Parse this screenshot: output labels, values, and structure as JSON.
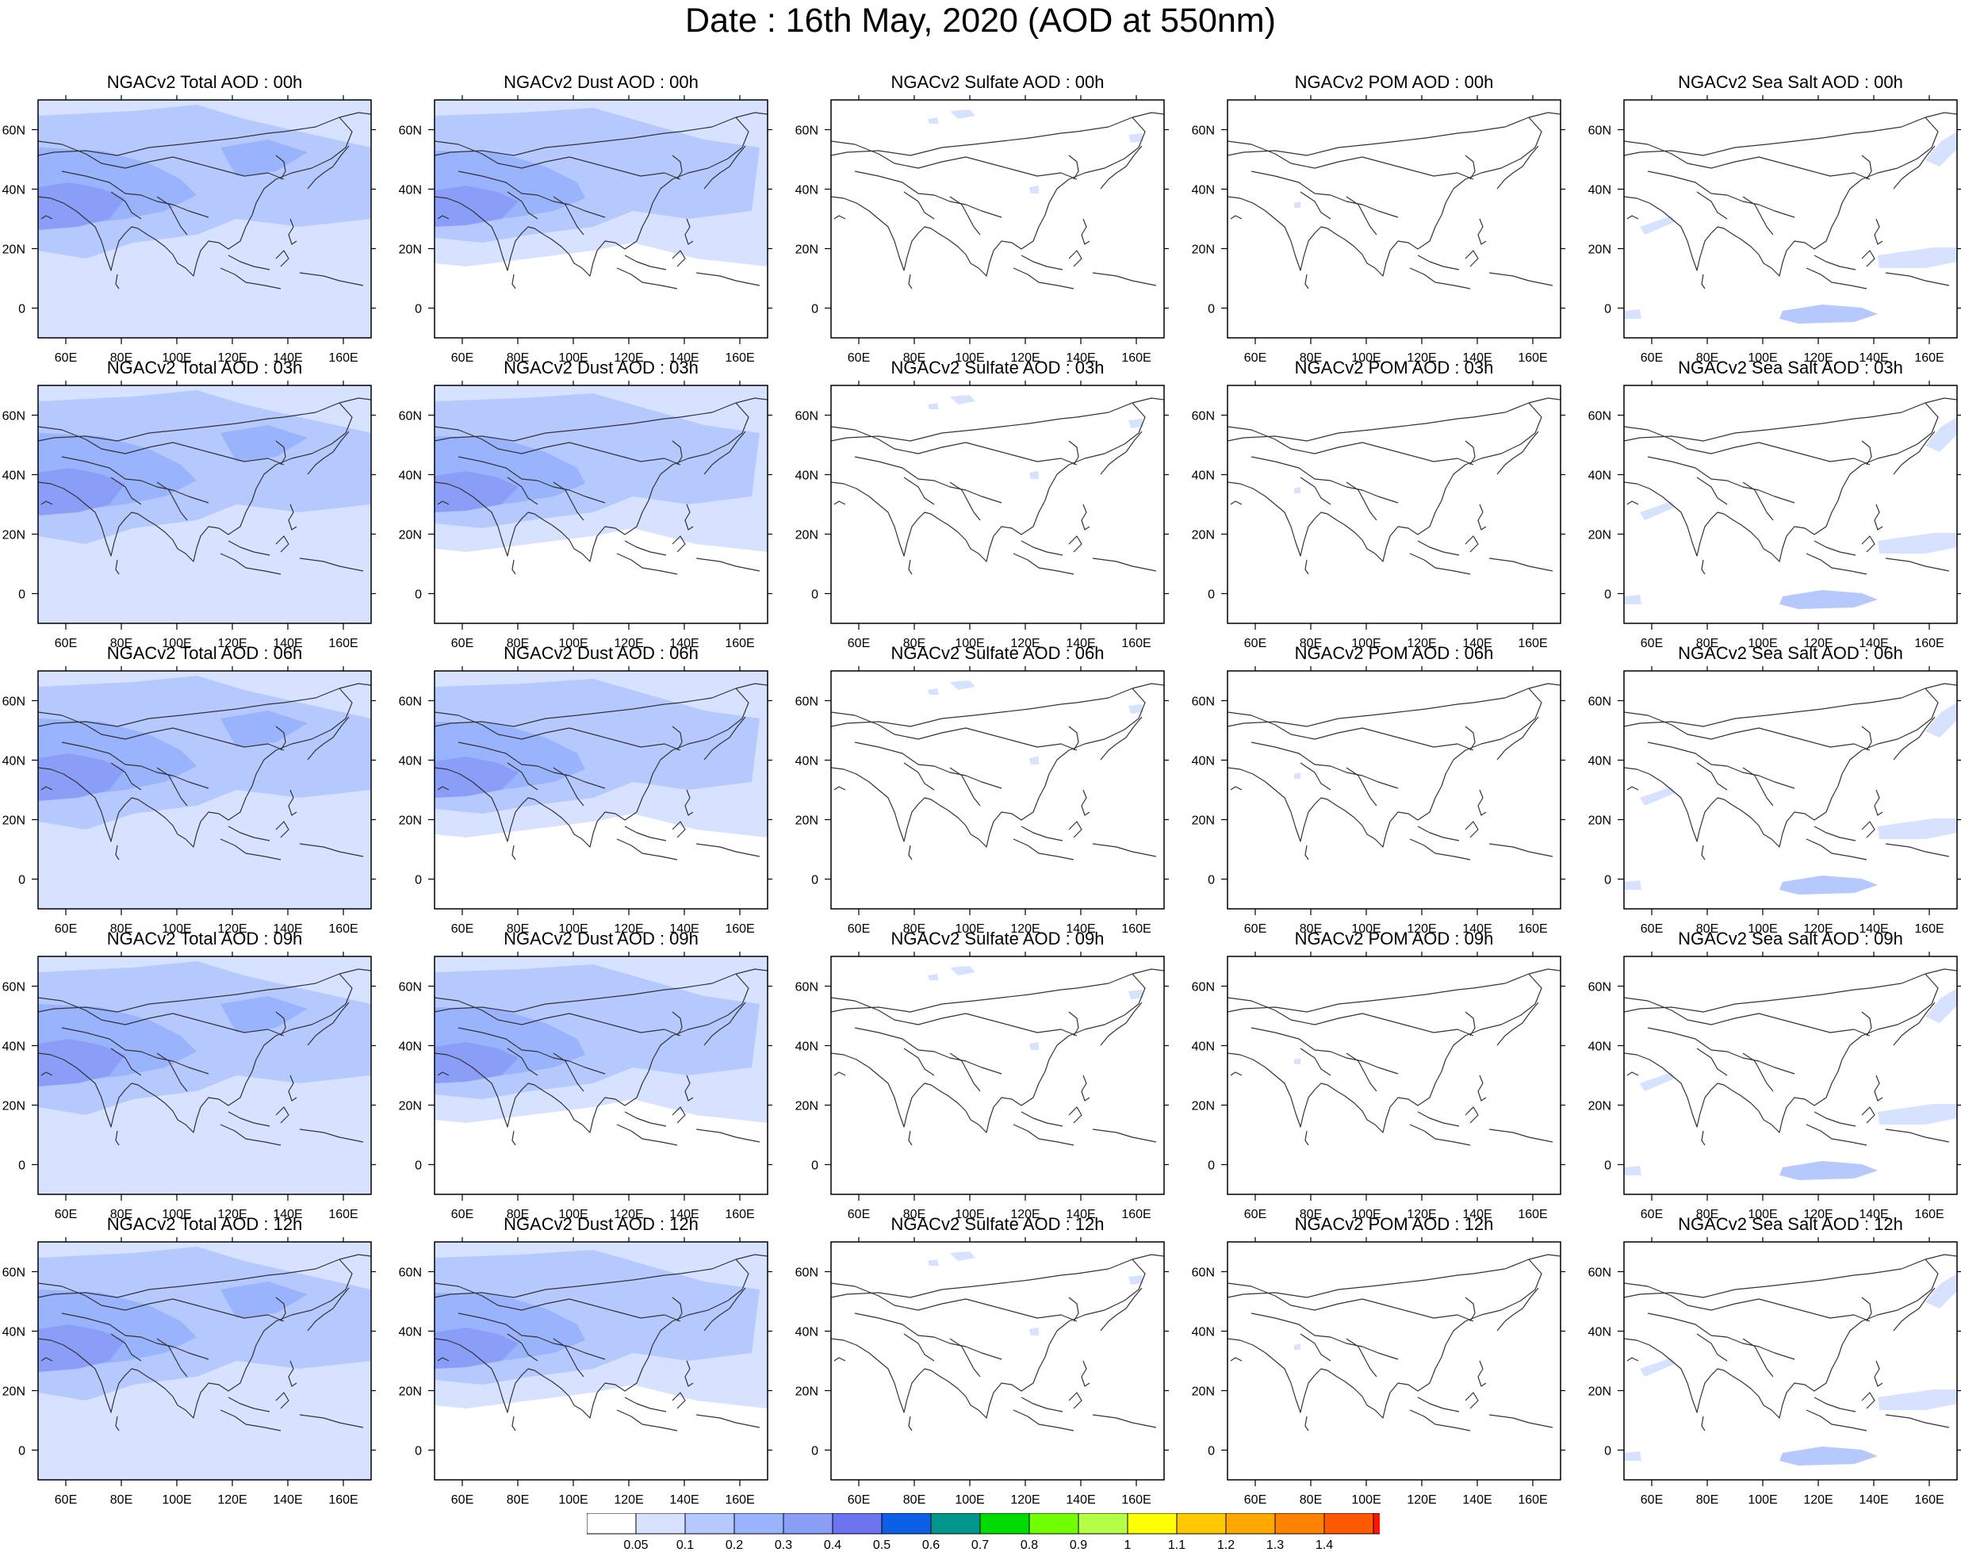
{
  "title": "Date : 16th May, 2020 (AOD at 550nm)",
  "panels": [
    {
      "title": "NGACv2 Total AOD : 00h",
      "species": "total"
    },
    {
      "title": "NGACv2 Dust AOD : 00h",
      "species": "dust"
    },
    {
      "title": "NGACv2 Sulfate AOD : 00h",
      "species": "sulfate"
    },
    {
      "title": "NGACv2 POM AOD : 00h",
      "species": "pom"
    },
    {
      "title": "NGACv2 Sea Salt AOD : 00h",
      "species": "seasalt"
    },
    {
      "title": "NGACv2 Total AOD : 03h",
      "species": "total"
    },
    {
      "title": "NGACv2 Dust AOD : 03h",
      "species": "dust"
    },
    {
      "title": "NGACv2 Sulfate AOD : 03h",
      "species": "sulfate"
    },
    {
      "title": "NGACv2 POM AOD : 03h",
      "species": "pom"
    },
    {
      "title": "NGACv2 Sea Salt AOD : 03h",
      "species": "seasalt"
    },
    {
      "title": "NGACv2 Total AOD : 06h",
      "species": "total"
    },
    {
      "title": "NGACv2 Dust AOD : 06h",
      "species": "dust"
    },
    {
      "title": "NGACv2 Sulfate AOD : 06h",
      "species": "sulfate"
    },
    {
      "title": "NGACv2 POM AOD : 06h",
      "species": "pom"
    },
    {
      "title": "NGACv2 Sea Salt AOD : 06h",
      "species": "seasalt"
    },
    {
      "title": "NGACv2 Total AOD : 09h",
      "species": "total"
    },
    {
      "title": "NGACv2 Dust AOD : 09h",
      "species": "dust"
    },
    {
      "title": "NGACv2 Sulfate AOD : 09h",
      "species": "sulfate"
    },
    {
      "title": "NGACv2 POM AOD : 09h",
      "species": "pom"
    },
    {
      "title": "NGACv2 Sea Salt  AOD : 09h",
      "species": "seasalt"
    },
    {
      "title": "NGACv2 Total AOD  : 12h",
      "species": "total"
    },
    {
      "title": "NGACv2 Dust AOD : 12h",
      "species": "dust"
    },
    {
      "title": "NGACv2 Sulfate AOD : 12h",
      "species": "sulfate"
    },
    {
      "title": "NGACv2 POM  AOD : 12h",
      "species": "pom"
    },
    {
      "title": "NGACv2 Sea Salt  AOD : 12h",
      "species": "seasalt"
    }
  ],
  "axes": {
    "lon_ticks": [
      "60E",
      "80E",
      "100E",
      "120E",
      "140E",
      "160E"
    ],
    "lat_ticks": [
      "60N",
      "40N",
      "20N",
      "0"
    ]
  },
  "colorbar": {
    "labels": [
      "0.05",
      "0.1",
      "0.2",
      "0.3",
      "0.4",
      "0.5",
      "0.6",
      "0.7",
      "0.8",
      "0.9",
      "1",
      "1.1",
      "1.2",
      "1.3",
      "1.4"
    ],
    "colors": [
      "#ffffff",
      "#d6e2ff",
      "#b5c9ff",
      "#99b3fc",
      "#8a9ef8",
      "#6c74f0",
      "#0b60e6",
      "#00968c",
      "#00dc00",
      "#70ff00",
      "#b4ff46",
      "#ffff00",
      "#ffc800",
      "#ffa800",
      "#ff8200",
      "#ff5a00",
      "#ff1400"
    ]
  },
  "legend_colors": {
    "light": "#d6e2ff",
    "medium": "#b5c9ff",
    "dark": "#99b3fc",
    "darker": "#8a9ef8"
  }
}
